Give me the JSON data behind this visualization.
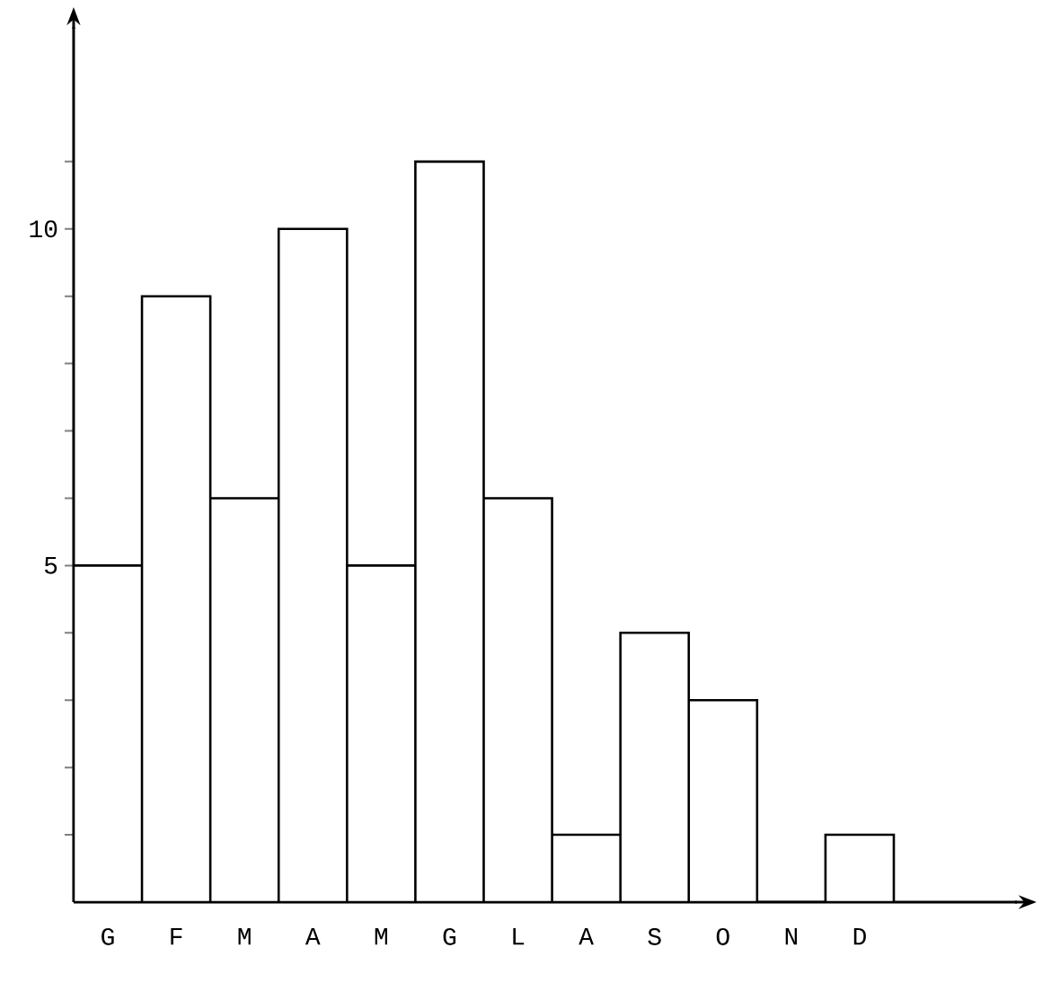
{
  "chart_data": {
    "type": "bar",
    "categories": [
      "G",
      "F",
      "M",
      "A",
      "M",
      "G",
      "L",
      "A",
      "S",
      "O",
      "N",
      "D"
    ],
    "values": [
      5,
      9,
      6,
      10,
      5,
      11,
      6,
      1,
      4,
      3,
      0,
      1
    ],
    "color": "#ffffff",
    "ylim": [
      0,
      13
    ],
    "yticks": [
      {
        "value": 1,
        "label": null
      },
      {
        "value": 2,
        "label": null
      },
      {
        "value": 3,
        "label": null
      },
      {
        "value": 4,
        "label": null
      },
      5,
      {
        "value": 6,
        "label": null
      },
      {
        "value": 7,
        "label": null
      },
      {
        "value": 8,
        "label": null
      },
      {
        "value": 9,
        "label": null
      },
      10,
      {
        "value": 11,
        "label": null
      }
    ],
    "grid": false
  }
}
